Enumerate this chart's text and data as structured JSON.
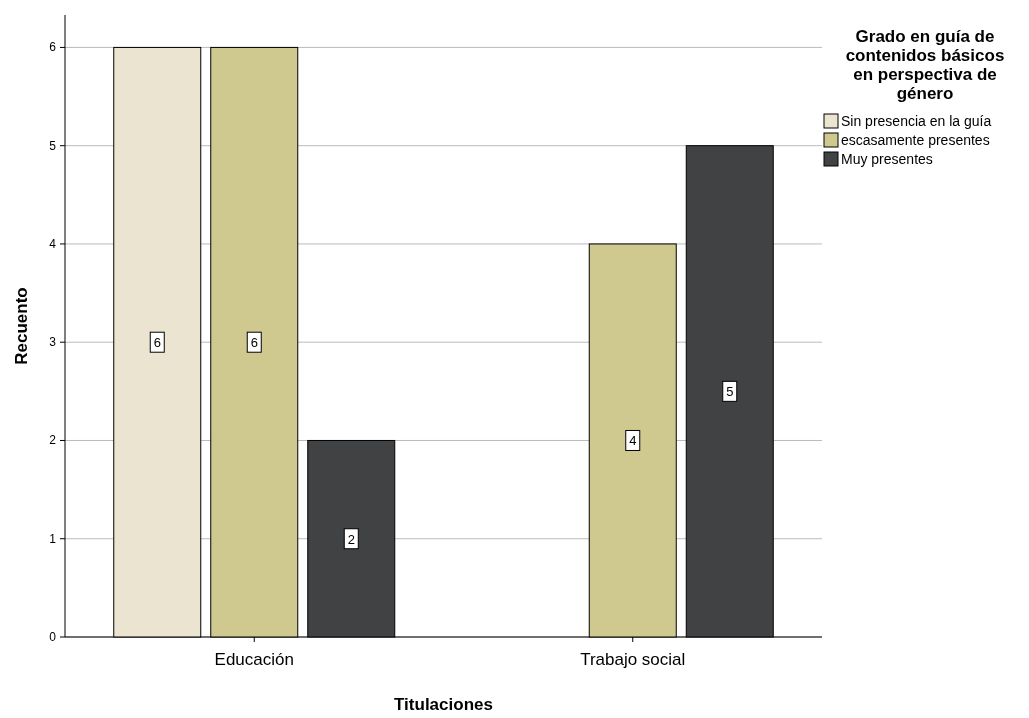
{
  "chart_data": {
    "type": "bar",
    "xlabel": "Titulaciones",
    "ylabel": "Recuento",
    "legend_title": "Grado en guía de contenidos básicos en perspectiva de género",
    "categories": [
      "Educación",
      "Trabajo social"
    ],
    "series": [
      {
        "name": "Sin presencia en la guía",
        "color": "#ebe4d0",
        "values": [
          6,
          null
        ]
      },
      {
        "name": "escasamente presentes",
        "color": "#cfc98f",
        "values": [
          6,
          4
        ]
      },
      {
        "name": "Muy presentes",
        "color": "#404244",
        "values": [
          2,
          5
        ]
      }
    ],
    "ylim": [
      0,
      6.33
    ],
    "yticks": [
      0,
      1,
      2,
      3,
      4,
      5,
      6
    ],
    "grid": "y",
    "legend": "right",
    "data_labels": true
  }
}
